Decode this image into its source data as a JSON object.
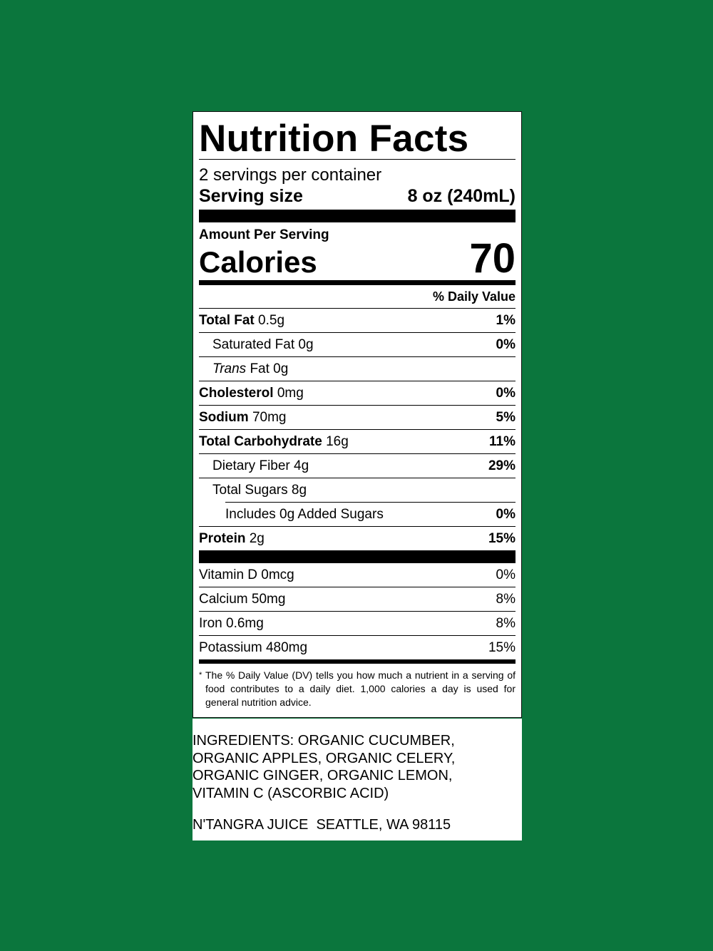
{
  "label": {
    "title": "Nutrition Facts",
    "servings_per_container": "2 servings per container",
    "serving_size_label": "Serving size",
    "serving_size_value": "8 oz (240mL)",
    "amount_per_serving": "Amount Per Serving",
    "calories_label": "Calories",
    "calories_value": "70",
    "daily_value_header": "% Daily Value",
    "nutrients": [
      {
        "name": "Total Fat",
        "amount": "0.5g",
        "dv": "1%"
      },
      {
        "name": "Saturated Fat 0g",
        "dv": "0%"
      },
      {
        "name_italic": "Trans",
        "name": "Fat 0g",
        "dv": ""
      },
      {
        "name": "Cholesterol",
        "amount": "0mg",
        "dv": "0%"
      },
      {
        "name": "Sodium",
        "amount": "70mg",
        "dv": "5%"
      },
      {
        "name": "Total Carbohydrate",
        "amount": "16g",
        "dv": "11%"
      },
      {
        "name": "Dietary Fiber 4g",
        "dv": "29%"
      },
      {
        "name": "Total Sugars 8g",
        "dv": ""
      },
      {
        "name": "Includes 0g Added Sugars",
        "dv": "0%"
      },
      {
        "name": "Protein",
        "amount": "2g",
        "dv": "15%"
      }
    ],
    "vitamins": [
      {
        "name": "Vitamin D 0mcg",
        "dv": "0%"
      },
      {
        "name": "Calcium 50mg",
        "dv": "8%"
      },
      {
        "name": "Iron 0.6mg",
        "dv": "8%"
      },
      {
        "name": "Potassium 480mg",
        "dv": "15%"
      }
    ],
    "footnote_star": "*",
    "footnote": "The % Daily Value (DV) tells you how much a nutrient in a serving of food contributes to a daily diet. 1,000 calories a day is used for general nutrition advice."
  },
  "ingredients": {
    "lines": [
      "INGREDIENTS: ORGANIC CUCUMBER,",
      "ORGANIC APPLES, ORGANIC CELERY,",
      "ORGANIC GINGER, ORGANIC LEMON,",
      "VITAMIN C (ASCORBIC ACID)"
    ],
    "manufacturer": "N'TANGRA JUICE  SEATTLE, WA 98115"
  },
  "colors": {
    "background": "#0b763d",
    "label": "#ffffff",
    "text": "#000000"
  }
}
